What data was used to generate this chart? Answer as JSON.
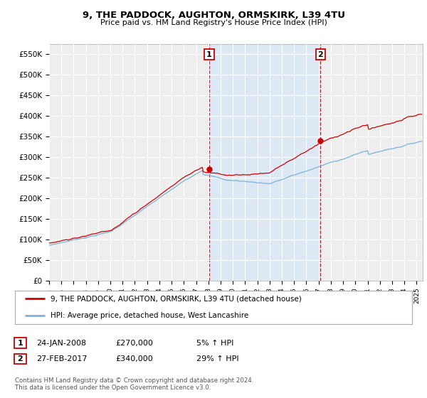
{
  "title": "9, THE PADDOCK, AUGHTON, ORMSKIRK, L39 4TU",
  "subtitle": "Price paid vs. HM Land Registry's House Price Index (HPI)",
  "ylabel_ticks": [
    "£0",
    "£50K",
    "£100K",
    "£150K",
    "£200K",
    "£250K",
    "£300K",
    "£350K",
    "£400K",
    "£450K",
    "£500K",
    "£550K"
  ],
  "ytick_values": [
    0,
    50000,
    100000,
    150000,
    200000,
    250000,
    300000,
    350000,
    400000,
    450000,
    500000,
    550000
  ],
  "ylim": [
    0,
    575000
  ],
  "background_color": "#ffffff",
  "plot_bg_color": "#eeeeee",
  "shade_color": "#dce9f5",
  "grid_color": "#ffffff",
  "hpi_color": "#7ab3d9",
  "price_color": "#cc0000",
  "legend_items": [
    "9, THE PADDOCK, AUGHTON, ORMSKIRK, L39 4TU (detached house)",
    "HPI: Average price, detached house, West Lancashire"
  ],
  "sale1_label": "1",
  "sale1_date": "24-JAN-2008",
  "sale1_price": "£270,000",
  "sale1_hpi": "5% ↑ HPI",
  "sale2_label": "2",
  "sale2_date": "27-FEB-2017",
  "sale2_price": "£340,000",
  "sale2_hpi": "29% ↑ HPI",
  "footer": "Contains HM Land Registry data © Crown copyright and database right 2024.\nThis data is licensed under the Open Government Licence v3.0.",
  "sale1_x": 2008.07,
  "sale1_y": 270000,
  "sale2_x": 2017.16,
  "sale2_y": 340000,
  "xmin": 1995,
  "xmax": 2025.5,
  "xtick_years": [
    1995,
    1996,
    1997,
    1998,
    1999,
    2000,
    2001,
    2002,
    2003,
    2004,
    2005,
    2006,
    2007,
    2008,
    2009,
    2010,
    2011,
    2012,
    2013,
    2014,
    2015,
    2016,
    2017,
    2018,
    2019,
    2020,
    2021,
    2022,
    2023,
    2024,
    2025
  ]
}
